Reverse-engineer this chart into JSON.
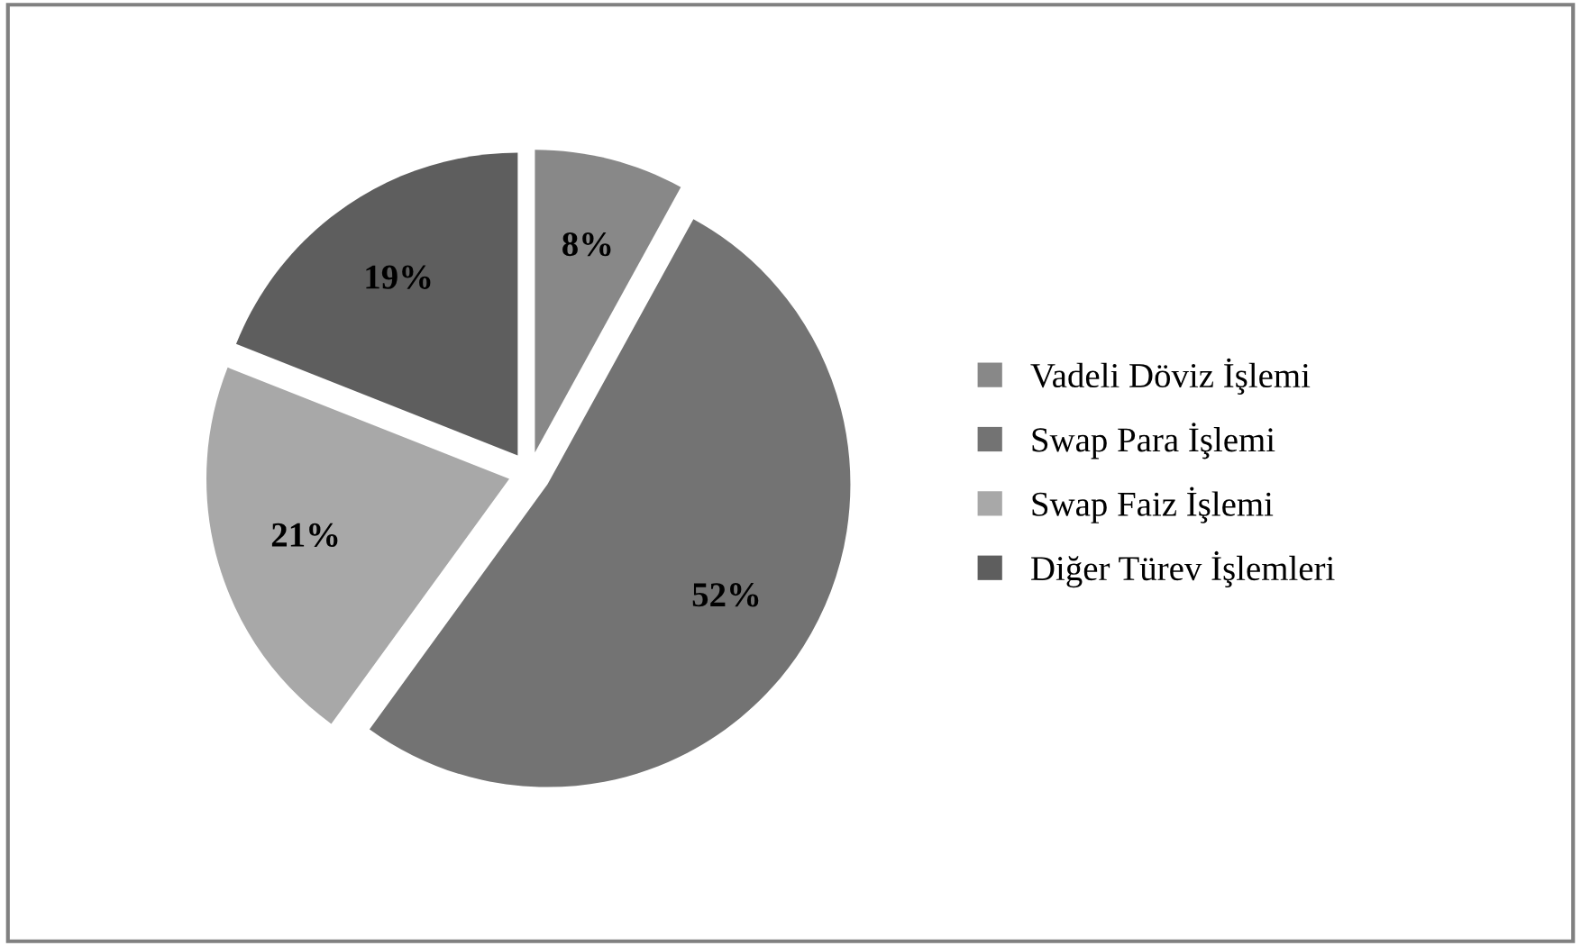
{
  "chart_data": {
    "type": "pie",
    "categories": [
      "Vadeli Döviz İşlemi",
      "Swap Para İşlemi",
      "Swap Faiz İşlemi",
      "Diğer Türev İşlemleri"
    ],
    "values": [
      8,
      52,
      21,
      19
    ],
    "colors": [
      "#888888",
      "#737373",
      "#a8a8a8",
      "#5e5e5e"
    ],
    "value_labels": [
      "8%",
      "52%",
      "21%",
      "19%"
    ],
    "legend": "right"
  }
}
